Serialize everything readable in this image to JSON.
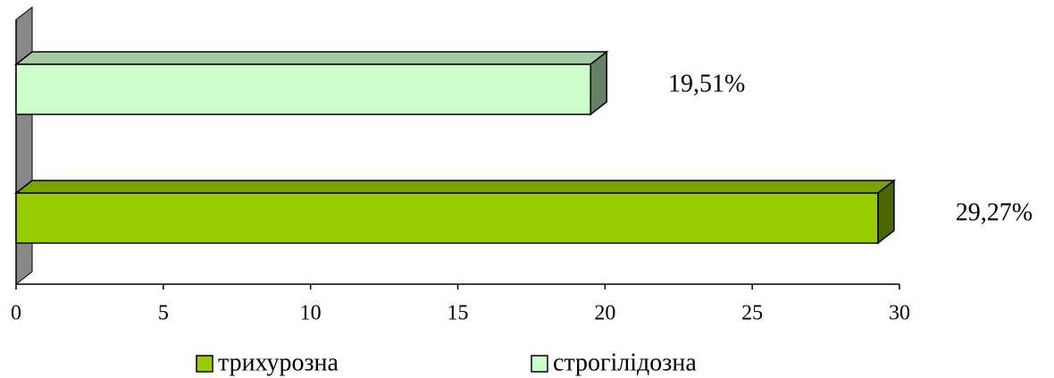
{
  "chart_data": {
    "type": "bar",
    "orientation": "horizontal",
    "categories": [
      null
    ],
    "series": [
      {
        "name": "трихурозна",
        "color": "#99cc00",
        "values": [
          29.27
        ],
        "value_labels": [
          "29,27%"
        ]
      },
      {
        "name": "строгілідозна",
        "color": "#ccffcc",
        "values": [
          19.51
        ],
        "value_labels": [
          "19,51%"
        ]
      }
    ],
    "xlim": [
      0,
      30
    ],
    "xticks": [
      0,
      5,
      10,
      15,
      20,
      25,
      30
    ],
    "legend": "bottom"
  }
}
